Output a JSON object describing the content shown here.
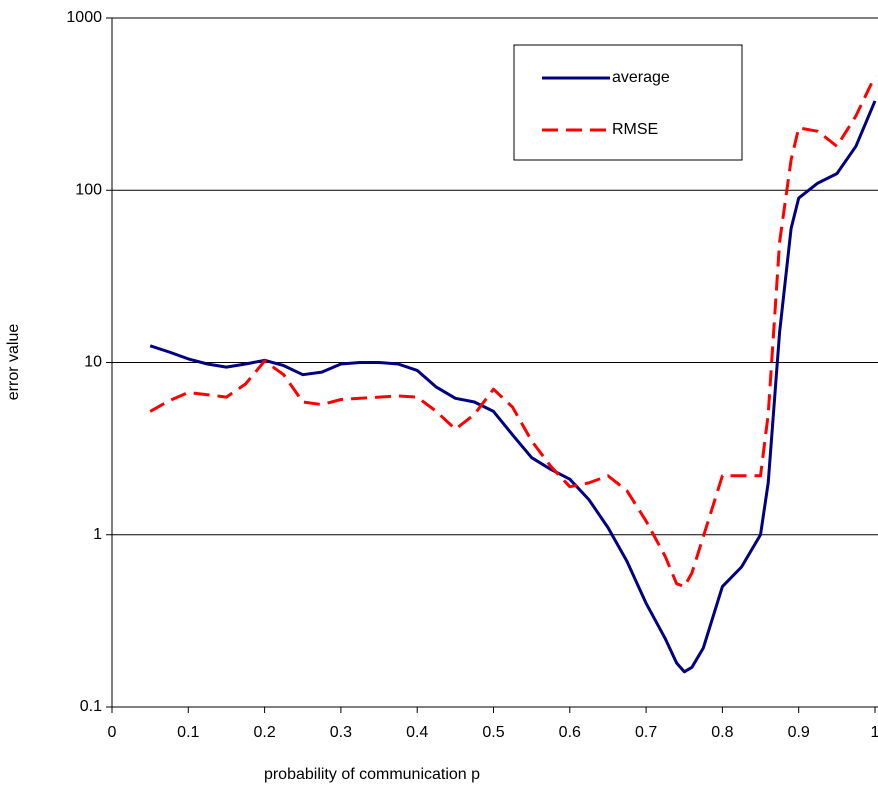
{
  "chart_data": {
    "type": "line",
    "x_label": "probability of communication p",
    "y_label": "error value",
    "log_y": true,
    "grid": true,
    "legend": "upper right",
    "xlim": [
      0,
      1
    ],
    "xticks": [
      0,
      0.1,
      0.2,
      0.3,
      0.4,
      0.5,
      0.6,
      0.7,
      0.8,
      0.9,
      1
    ],
    "ylim": [
      0.1,
      1000
    ],
    "yticks": [
      0.1,
      1,
      10,
      100,
      1000
    ],
    "series": [
      {
        "name": "average",
        "color": "#000080",
        "dash": "solid",
        "x": [
          0.05,
          0.075,
          0.1,
          0.125,
          0.15,
          0.175,
          0.2,
          0.225,
          0.25,
          0.275,
          0.3,
          0.325,
          0.35,
          0.375,
          0.4,
          0.425,
          0.45,
          0.475,
          0.5,
          0.525,
          0.55,
          0.575,
          0.6,
          0.625,
          0.65,
          0.675,
          0.7,
          0.725,
          0.74,
          0.75,
          0.76,
          0.775,
          0.8,
          0.825,
          0.85,
          0.86,
          0.875,
          0.89,
          0.9,
          0.925,
          0.95,
          0.975,
          1
        ],
        "values": [
          12.5,
          11.5,
          10.5,
          9.8,
          9.4,
          9.8,
          10.3,
          9.6,
          8.5,
          8.8,
          9.8,
          10,
          10,
          9.8,
          9,
          7.2,
          6.2,
          5.9,
          5.2,
          3.8,
          2.8,
          2.4,
          2.1,
          1.6,
          1.1,
          0.7,
          0.4,
          0.25,
          0.18,
          0.16,
          0.17,
          0.22,
          0.5,
          0.65,
          1.0,
          2,
          15,
          60,
          90,
          110,
          125,
          180,
          330
        ]
      },
      {
        "name": "RMSE",
        "color": "#ff0000",
        "dash": "dashed",
        "x": [
          0.05,
          0.075,
          0.1,
          0.125,
          0.15,
          0.175,
          0.2,
          0.225,
          0.25,
          0.275,
          0.3,
          0.325,
          0.35,
          0.375,
          0.4,
          0.425,
          0.45,
          0.475,
          0.5,
          0.525,
          0.55,
          0.575,
          0.6,
          0.625,
          0.65,
          0.675,
          0.7,
          0.725,
          0.74,
          0.75,
          0.76,
          0.8,
          0.825,
          0.85,
          0.86,
          0.875,
          0.89,
          0.9,
          0.925,
          0.95,
          0.975,
          1
        ],
        "values": [
          5.2,
          6,
          6.7,
          6.5,
          6.3,
          7.5,
          10.2,
          8.5,
          5.9,
          5.7,
          6.1,
          6.2,
          6.3,
          6.4,
          6.3,
          5.2,
          4.1,
          5,
          7,
          5.5,
          3.5,
          2.5,
          1.9,
          2,
          2.2,
          1.8,
          1.2,
          0.75,
          0.52,
          0.5,
          0.6,
          2.2,
          2.2,
          2.2,
          5,
          50,
          150,
          230,
          220,
          180,
          270,
          460
        ]
      }
    ]
  }
}
